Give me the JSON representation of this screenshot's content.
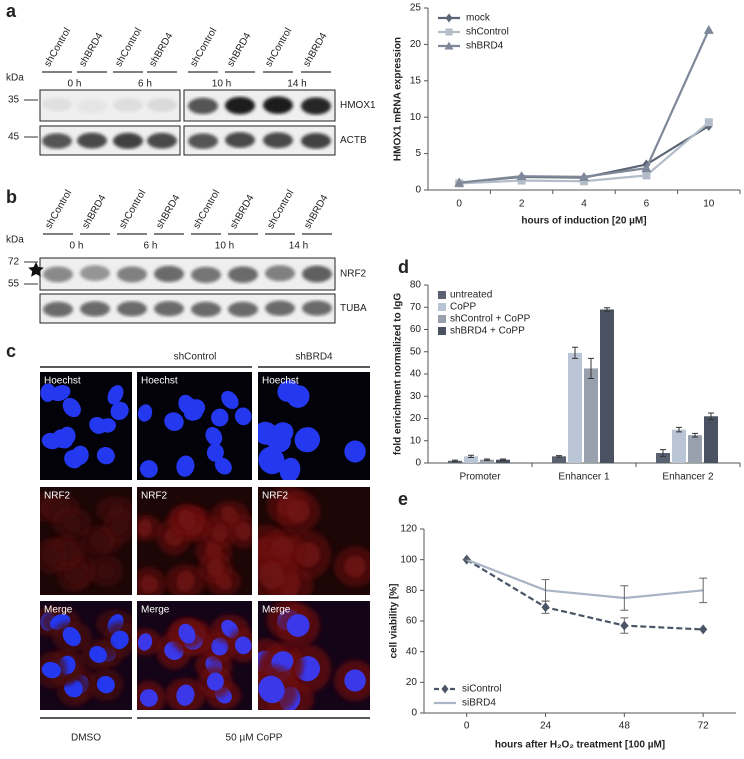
{
  "panel_labels": [
    "a",
    "b",
    "c",
    "d",
    "e"
  ],
  "blot_a": {
    "unit": "kDa",
    "markers": [
      "35",
      "45"
    ],
    "lanes": [
      "shControl",
      "shBRD4",
      "shControl",
      "shBRD4",
      "shControl",
      "shBRD4",
      "shControl",
      "shBRD4"
    ],
    "timepoints": [
      "0 h",
      "6 h",
      "10 h",
      "14 h"
    ],
    "bands": [
      "HMOX1",
      "ACTB"
    ]
  },
  "blot_b": {
    "unit": "kDa",
    "markers": [
      "72",
      "55"
    ],
    "lanes": [
      "shControl",
      "shBRD4",
      "shControl",
      "shBRD4",
      "shControl",
      "shBRD4",
      "shControl",
      "shBRD4"
    ],
    "timepoints": [
      "0 h",
      "6 h",
      "10 h",
      "14 h"
    ],
    "bands": [
      "NRF2",
      "TUBA"
    ]
  },
  "micrographs": {
    "groups": [
      "shControl",
      "shBRD4"
    ],
    "rows": [
      [
        "Hoechst",
        "Hoechst",
        "Hoechst"
      ],
      [
        "NRF2",
        "NRF2",
        "NRF2"
      ],
      [
        "Merge",
        "Merge",
        "Merge"
      ]
    ],
    "treatments": [
      "DMSO",
      "50 µM CoPP"
    ]
  },
  "chart_data": [
    {
      "type": "line",
      "x_label": "hours of induction  [20 µM]",
      "y_label": "HMOX1 mRNA expression",
      "categories": [
        "0",
        "2",
        "4",
        "6",
        "10"
      ],
      "ylim": [
        0,
        25
      ],
      "yticks": [
        0,
        5,
        10,
        15,
        20,
        25
      ],
      "legend": "upper left",
      "series": [
        {
          "name": "mock",
          "color": "#5b6576",
          "marker": "diamond",
          "values": [
            1.0,
            1.8,
            1.7,
            3.5,
            8.8
          ]
        },
        {
          "name": "shControl",
          "color": "#b3bcc9",
          "marker": "square",
          "values": [
            0.9,
            1.3,
            1.2,
            2.0,
            9.3
          ]
        },
        {
          "name": "shBRD4",
          "color": "#7f8898",
          "marker": "triangle",
          "values": [
            1.0,
            1.9,
            1.8,
            3.0,
            22
          ]
        }
      ]
    },
    {
      "type": "bar",
      "y_label": "fold enrichment normalized to IgG",
      "categories": [
        "Promoter",
        "Enhancer 1",
        "Enhancer 2"
      ],
      "ylim": [
        0,
        80
      ],
      "yticks": [
        0,
        10,
        20,
        30,
        40,
        50,
        60,
        70,
        80
      ],
      "legend": "upper left",
      "series": [
        {
          "name": "untreated",
          "color": "#5a6272",
          "values": [
            1,
            3,
            4.5
          ],
          "errors": [
            0.3,
            0.3,
            1.5
          ]
        },
        {
          "name": "CoPP",
          "color": "#b9c5d5",
          "values": [
            3,
            49.5,
            15
          ],
          "errors": [
            0.5,
            2.5,
            1
          ]
        },
        {
          "name": "shControl + CoPP",
          "color": "#98a0ad",
          "values": [
            1.5,
            42.5,
            12.5
          ],
          "errors": [
            0.3,
            4.5,
            0.8
          ]
        },
        {
          "name": "shBRD4 + CoPP",
          "color": "#4a5262",
          "values": [
            1.5,
            69,
            21
          ],
          "errors": [
            0.3,
            0.8,
            1.5
          ]
        }
      ]
    },
    {
      "type": "line",
      "x_label": "hours after H₂O₂ treatment [100 µM]",
      "y_label": "cell viability  [%]",
      "x": [
        0,
        24,
        48,
        72
      ],
      "xlim": [
        -13,
        82
      ],
      "xticks": [
        0,
        24,
        48,
        72
      ],
      "ylim": [
        0,
        120
      ],
      "yticks": [
        0,
        20,
        40,
        60,
        80,
        100,
        120
      ],
      "legend": "lower left",
      "series": [
        {
          "name": "siControl",
          "color": "#4a5568",
          "dash": true,
          "marker": "diamond",
          "values": [
            100,
            69,
            57,
            54.5
          ],
          "errors": [
            0,
            4,
            5,
            0
          ]
        },
        {
          "name": "siBRD4",
          "color": "#a9b4c4",
          "dash": false,
          "marker": "none",
          "values": [
            100,
            80,
            75,
            80
          ],
          "errors": [
            0,
            7,
            8,
            8
          ]
        }
      ]
    }
  ]
}
